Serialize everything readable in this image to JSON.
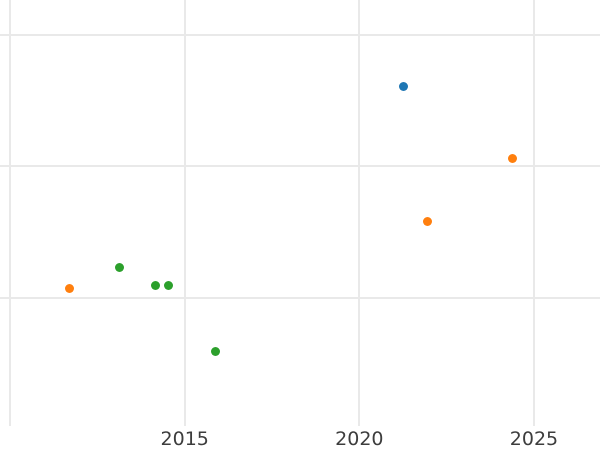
{
  "figure": {
    "background_color": "#ffffff",
    "gridline_color": "#e9e9e9",
    "tick_label_color": "#3d3d3d"
  },
  "chart_data": {
    "type": "scatter",
    "grid": true,
    "legend": false,
    "x_axis": {
      "tick_labels": [
        "2015",
        "2020",
        "2025"
      ],
      "tick_positions": [
        2015,
        2020,
        2025
      ],
      "gridline_positions": [
        2010,
        2015,
        2020,
        2025
      ],
      "xlim": [
        2009.71,
        2026.89
      ]
    },
    "y_axis": {
      "tick_labels": [],
      "units": "unlabeled-gridline-units",
      "gridline_values": [
        1,
        2,
        3
      ],
      "ylim": [
        0.02,
        3.27
      ]
    },
    "series": [
      {
        "name": "series-blue",
        "color": "#1f77b4",
        "marker": "circle",
        "points": [
          {
            "x": 2021.26,
            "y": 2.61
          }
        ]
      },
      {
        "name": "series-orange",
        "color": "#ff7f0e",
        "marker": "circle",
        "points": [
          {
            "x": 2011.69,
            "y": 1.07
          },
          {
            "x": 2021.96,
            "y": 1.58
          },
          {
            "x": 2024.38,
            "y": 2.06
          }
        ]
      },
      {
        "name": "series-green",
        "color": "#2ca02c",
        "marker": "circle",
        "points": [
          {
            "x": 2013.13,
            "y": 1.23
          },
          {
            "x": 2014.17,
            "y": 1.09
          },
          {
            "x": 2014.53,
            "y": 1.09
          },
          {
            "x": 2015.89,
            "y": 0.59
          }
        ]
      }
    ]
  }
}
